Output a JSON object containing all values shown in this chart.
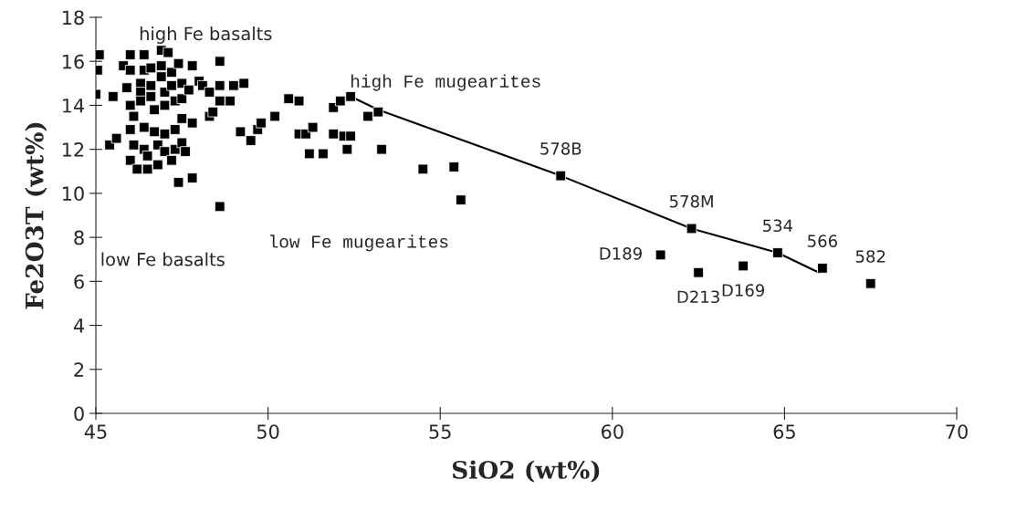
{
  "chart_data": {
    "type": "scatter",
    "xlabel": "SiO2 (wt%)",
    "ylabel": "Fe2O3T (wt%)",
    "xlim": [
      45,
      70
    ],
    "ylim": [
      0,
      18
    ],
    "xticks": [
      45,
      50,
      55,
      60,
      65,
      70
    ],
    "yticks": [
      0,
      2,
      4,
      6,
      8,
      10,
      12,
      14,
      16,
      18
    ],
    "grid": false,
    "legend": false,
    "series": [
      {
        "marker": "square",
        "color": "#000000",
        "x": [
          45.1,
          45.05,
          45.0,
          45.5,
          45.4,
          45.6,
          45.8,
          45.9,
          46.0,
          46.0,
          46.0,
          46.1,
          46.0,
          46.1,
          46.0,
          46.2,
          46.3,
          46.3,
          46.4,
          46.4,
          46.3,
          46.4,
          46.4,
          46.5,
          46.5,
          46.6,
          46.6,
          46.6,
          46.7,
          46.7,
          46.8,
          46.8,
          46.9,
          46.9,
          46.9,
          47.0,
          47.0,
          47.0,
          47.0,
          47.1,
          47.2,
          47.2,
          47.3,
          47.3,
          47.3,
          47.2,
          47.4,
          47.5,
          47.5,
          47.5,
          47.5,
          47.6,
          47.4,
          47.8,
          47.7,
          47.8,
          47.8,
          48.0,
          48.1,
          48.3,
          48.3,
          48.4,
          48.6,
          48.6,
          48.6,
          48.6,
          48.9,
          49.0,
          49.3,
          49.2,
          49.5,
          49.7,
          49.8,
          50.2,
          50.6,
          50.9,
          50.9,
          51.1,
          51.2,
          51.3,
          51.6,
          51.9,
          51.9,
          52.1,
          52.2,
          52.3,
          52.4,
          52.4,
          52.9,
          53.2,
          53.3,
          54.5,
          55.4,
          55.6,
          58.5,
          62.3,
          64.8,
          66.1,
          67.5,
          61.4,
          62.5,
          63.8
        ],
        "values": [
          16.3,
          15.6,
          14.5,
          14.4,
          12.2,
          12.5,
          15.8,
          14.8,
          16.3,
          15.6,
          14.0,
          13.5,
          12.9,
          12.2,
          11.5,
          11.1,
          15.0,
          14.6,
          16.3,
          15.6,
          14.2,
          13.0,
          12.0,
          11.7,
          11.1,
          15.7,
          14.9,
          14.4,
          13.8,
          12.8,
          12.2,
          11.3,
          16.5,
          15.8,
          15.3,
          14.6,
          14.0,
          12.7,
          11.9,
          16.4,
          15.5,
          14.9,
          14.2,
          12.9,
          12.0,
          11.5,
          15.9,
          15.0,
          14.3,
          13.4,
          12.3,
          11.9,
          10.5,
          15.8,
          14.7,
          13.2,
          10.7,
          15.1,
          14.9,
          14.6,
          13.5,
          13.7,
          16.0,
          14.9,
          14.2,
          9.4,
          14.2,
          14.9,
          15.0,
          12.8,
          12.4,
          12.9,
          13.2,
          13.5,
          14.3,
          14.2,
          12.7,
          12.7,
          11.8,
          13.0,
          11.8,
          12.7,
          13.9,
          14.2,
          12.6,
          12.0,
          14.4,
          12.6,
          13.5,
          13.7,
          12.0,
          11.1,
          11.2,
          9.7,
          10.8,
          8.4,
          7.3,
          6.6,
          5.9,
          7.2,
          6.4,
          6.7
        ]
      },
      {
        "type": "line",
        "marker": "none",
        "line_style": "solid",
        "color": "#000000",
        "x": [
          52.4,
          53.2,
          58.5,
          62.3,
          64.8,
          66.0
        ],
        "values": [
          14.4,
          13.8,
          10.8,
          8.4,
          7.3,
          6.4
        ]
      }
    ],
    "annotations": [
      "high Fe basalts",
      "high Fe mugearites",
      "low Fe mugearites",
      "low Fe basalts",
      {
        "text": "578B",
        "x": 58.5,
        "y": 10.8
      },
      {
        "text": "578M",
        "x": 62.3,
        "y": 8.4
      },
      {
        "text": "534",
        "x": 64.8,
        "y": 7.3
      },
      {
        "text": "566",
        "x": 66.1,
        "y": 6.6
      },
      {
        "text": "582",
        "x": 67.5,
        "y": 5.9
      },
      {
        "text": "D189",
        "x": 61.4,
        "y": 7.2
      },
      {
        "text": "D213",
        "x": 62.5,
        "y": 6.4
      },
      {
        "text": "D169",
        "x": 63.8,
        "y": 6.7
      }
    ]
  }
}
